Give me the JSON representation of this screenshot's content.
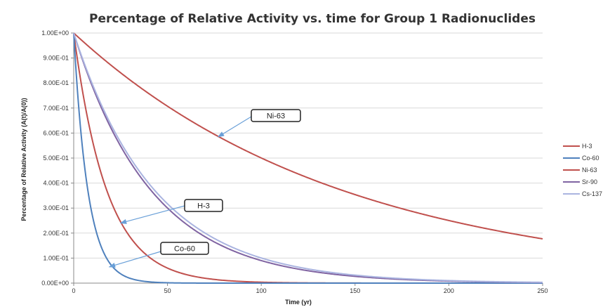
{
  "chart_data": {
    "type": "line",
    "title": "Percentage of Relative Activity vs. time for Group 1 Radionuclides",
    "xlabel": "Time (yr)",
    "ylabel": "Percentage of Relative Activity (A(t)/A(0))",
    "xlim": [
      0,
      250
    ],
    "ylim": [
      0,
      1
    ],
    "x_ticks": [
      "0",
      "50",
      "100",
      "150",
      "200",
      "250"
    ],
    "y_ticks": [
      "0.00E+00",
      "1.00E-01",
      "2.00E-01",
      "3.00E-01",
      "4.00E-01",
      "5.00E-01",
      "6.00E-01",
      "7.00E-01",
      "8.00E-01",
      "9.00E-01",
      "1.00E+00"
    ],
    "grid": "horizontal",
    "legend_position": "right",
    "series": [
      {
        "name": "H-3",
        "color": "#c0504d",
        "half_life_years": 12.32,
        "x": [
          0,
          10,
          20,
          30,
          40,
          50,
          75,
          100,
          150,
          200,
          250
        ],
        "values": [
          1.0,
          0.57,
          0.324,
          0.185,
          0.105,
          0.06,
          0.015,
          0.004,
          0.0002,
          0.0,
          0.0
        ]
      },
      {
        "name": "Co-60",
        "color": "#4f81bd",
        "half_life_years": 5.27,
        "x": [
          0,
          5,
          10,
          15,
          20,
          25,
          30,
          40,
          50,
          75,
          100,
          250
        ],
        "values": [
          1.0,
          0.518,
          0.268,
          0.139,
          0.072,
          0.037,
          0.019,
          0.005,
          0.001,
          0.0,
          0.0,
          0.0
        ]
      },
      {
        "name": "Ni-63",
        "color": "#c0504d",
        "half_life_years": 100.1,
        "x": [
          0,
          25,
          50,
          75,
          100,
          125,
          150,
          175,
          200,
          225,
          250
        ],
        "values": [
          1.0,
          0.841,
          0.707,
          0.595,
          0.5,
          0.421,
          0.354,
          0.298,
          0.25,
          0.211,
          0.177
        ]
      },
      {
        "name": "Sr-90",
        "color": "#8064a2",
        "half_life_years": 28.8,
        "x": [
          0,
          25,
          50,
          75,
          100,
          150,
          200,
          250
        ],
        "values": [
          1.0,
          0.548,
          0.3,
          0.165,
          0.09,
          0.027,
          0.008,
          0.002
        ]
      },
      {
        "name": "Cs-137",
        "color": "#aab4e0",
        "half_life_years": 30.17,
        "x": [
          0,
          25,
          50,
          75,
          100,
          150,
          200,
          250
        ],
        "values": [
          1.0,
          0.563,
          0.317,
          0.178,
          0.1,
          0.032,
          0.01,
          0.003
        ]
      }
    ],
    "annotations": [
      {
        "text": "Ni-63",
        "target_x": 77,
        "target_y": 0.585
      },
      {
        "text": "H-3",
        "target_x": 25,
        "target_y": 0.24
      },
      {
        "text": "Co-60",
        "target_x": 19,
        "target_y": 0.065
      }
    ]
  }
}
